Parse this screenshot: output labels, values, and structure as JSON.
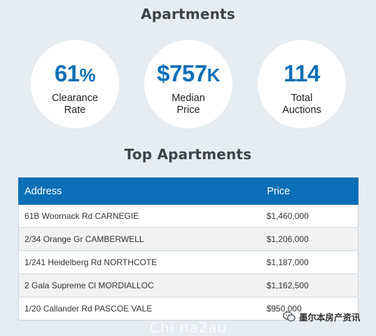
{
  "headings": {
    "apartments": "Apartments",
    "top_apartments": "Top Apartments"
  },
  "stats": [
    {
      "value": "61",
      "unit": "%",
      "label_line1": "Clearance",
      "label_line2": "Rate"
    },
    {
      "value": "$757",
      "unit": "K",
      "label_line1": "Median",
      "label_line2": "Price"
    },
    {
      "value": "114",
      "unit": "",
      "label_line1": "Total",
      "label_line2": "Auctions"
    }
  ],
  "table": {
    "headers": {
      "address": "Address",
      "price": "Price"
    },
    "rows": [
      {
        "address": "61B Woornack Rd CARNEGIE",
        "price": "$1,460,000"
      },
      {
        "address": "2/34 Orange Gr CAMBERWELL",
        "price": "$1,206,000"
      },
      {
        "address": "1/241 Heidelberg Rd NORTHCOTE",
        "price": "$1,187,000"
      },
      {
        "address": "2 Gala Supreme Cl MORDIALLOC",
        "price": "$1,162,500"
      },
      {
        "address": "1/20 Callander Rd PASCOE VALE",
        "price": "$950,000"
      }
    ]
  },
  "watermarks": {
    "left": "Chi na2au",
    "right": "墨尔本房产资讯"
  },
  "colors": {
    "accent": "#0a6fb6",
    "background": "#e6ecf0",
    "heading": "#3d4449"
  }
}
